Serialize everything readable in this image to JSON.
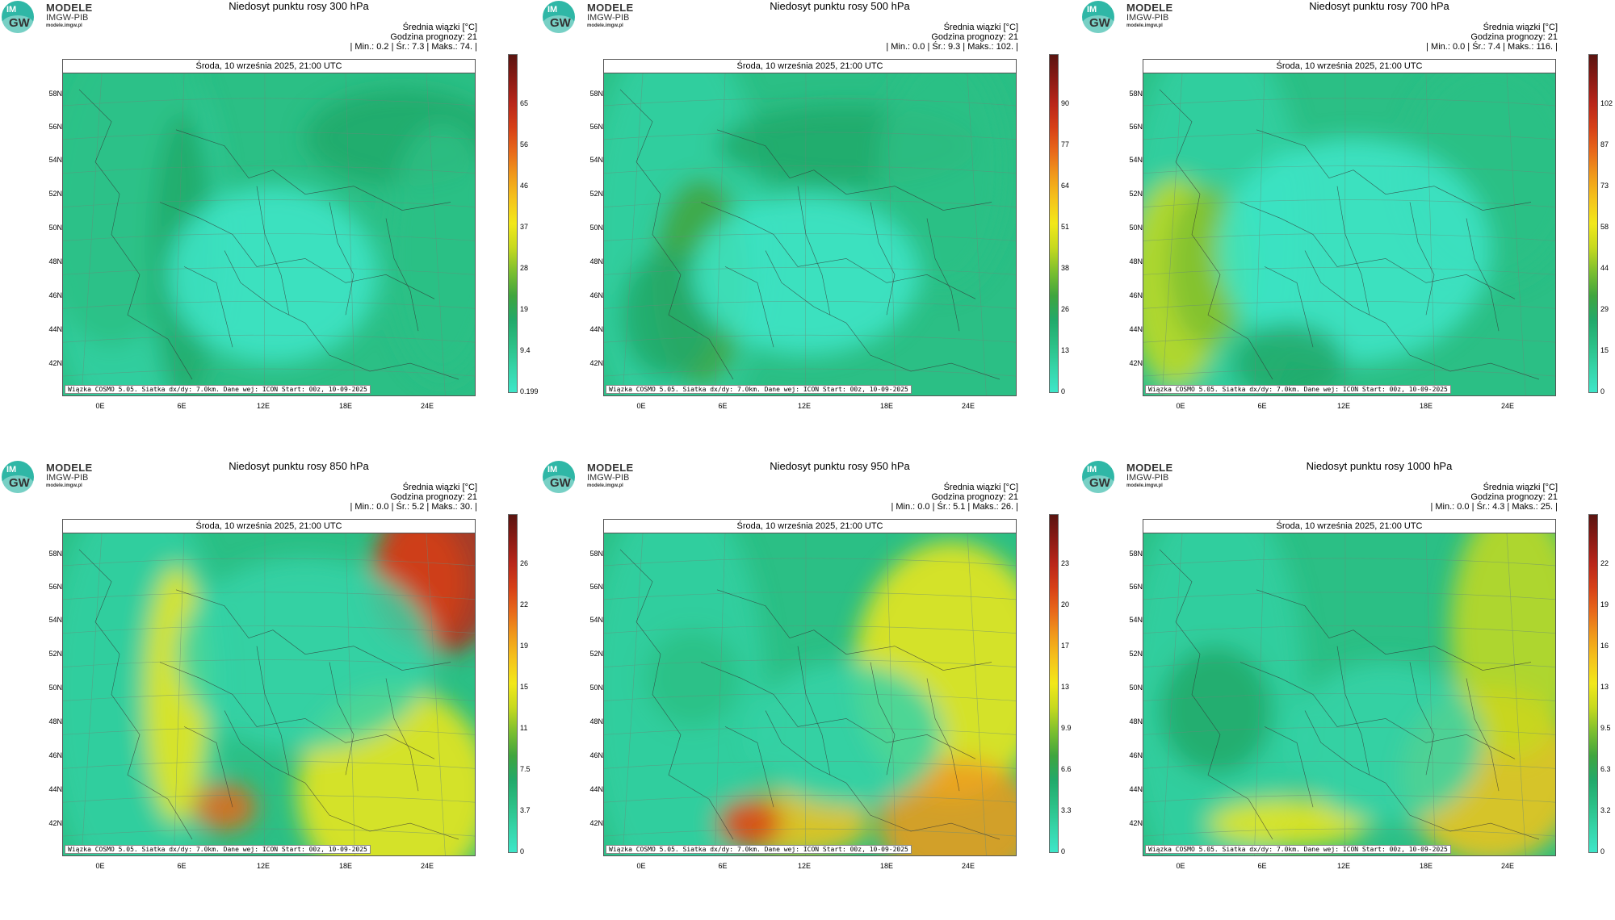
{
  "logo": {
    "line1": "MODELE",
    "line2": "IMGW-PIB",
    "line3": "modele.imgw.pl",
    "mark_top": "IM",
    "mark_bottom": "GW"
  },
  "common": {
    "avg_label": "Średnia wiązki [°C]",
    "forecast_hour_label": "Godzina prognozy: 21",
    "date": "Środa, 10 września 2025, 21:00 UTC",
    "footer": "Wiązka COSMO 5.05. Siatka dx/dy: 7.0km. Dane wej: ICON Start: 00z, 10-09-2025",
    "lat_ticks": [
      "58N",
      "56N",
      "54N",
      "52N",
      "50N",
      "48N",
      "46N",
      "44N",
      "42N"
    ],
    "lon_ticks": [
      "0E",
      "6E",
      "12E",
      "18E",
      "24E"
    ]
  },
  "colors": {
    "scale": [
      "#3ee6c9",
      "#35d4a8",
      "#2bbf85",
      "#22a96a",
      "#3fa53e",
      "#7cbf2f",
      "#c6d91f",
      "#f2e81a",
      "#f5c41b",
      "#f09a1a",
      "#e8681a",
      "#d63f17",
      "#b8261a",
      "#8a1a14",
      "#5a1410"
    ]
  },
  "panels": [
    {
      "title": "Niedosyt punktu rosy 300 hPa",
      "stats": "| Min.:     0.2 | Śr.:     7.3 | Maks.:     74. |",
      "colorbar_labels": [
        "65",
        "56",
        "46",
        "37",
        "28",
        "19",
        "9.4",
        "0.199"
      ],
      "intensity": 0.22
    },
    {
      "title": "Niedosyt punktu rosy 500 hPa",
      "stats": "| Min.:     0.0 | Śr.:     9.3 | Maks.:     102. |",
      "colorbar_labels": [
        "90",
        "77",
        "64",
        "51",
        "38",
        "26",
        "13",
        "0"
      ],
      "intensity": 0.22
    },
    {
      "title": "Niedosyt punktu rosy 700 hPa",
      "stats": "| Min.:     0.0 | Śr.:     7.4 | Maks.:     116. |",
      "colorbar_labels": [
        "102",
        "87",
        "73",
        "58",
        "44",
        "29",
        "15",
        "0"
      ],
      "intensity": 0.18
    },
    {
      "title": "Niedosyt punktu rosy 850 hPa",
      "stats": "| Min.:     0.0 | Śr.:     5.2 | Maks.:     30. |",
      "colorbar_labels": [
        "26",
        "22",
        "19",
        "15",
        "11",
        "7.5",
        "3.7",
        "0"
      ],
      "intensity": 0.55
    },
    {
      "title": "Niedosyt punktu rosy 950 hPa",
      "stats": "| Min.:     0.0 | Śr.:     5.1 | Maks.:     26. |",
      "colorbar_labels": [
        "23",
        "20",
        "17",
        "13",
        "9.9",
        "6.6",
        "3.3",
        "0"
      ],
      "intensity": 0.6
    },
    {
      "title": "Niedosyt punktu rosy 1000 hPa",
      "stats": "| Min.:     0.0 | Śr.:     4.3 | Maks.:     25. |",
      "colorbar_labels": [
        "22",
        "19",
        "16",
        "13",
        "9.5",
        "6.3",
        "3.2",
        "0"
      ],
      "intensity": 0.6
    }
  ]
}
